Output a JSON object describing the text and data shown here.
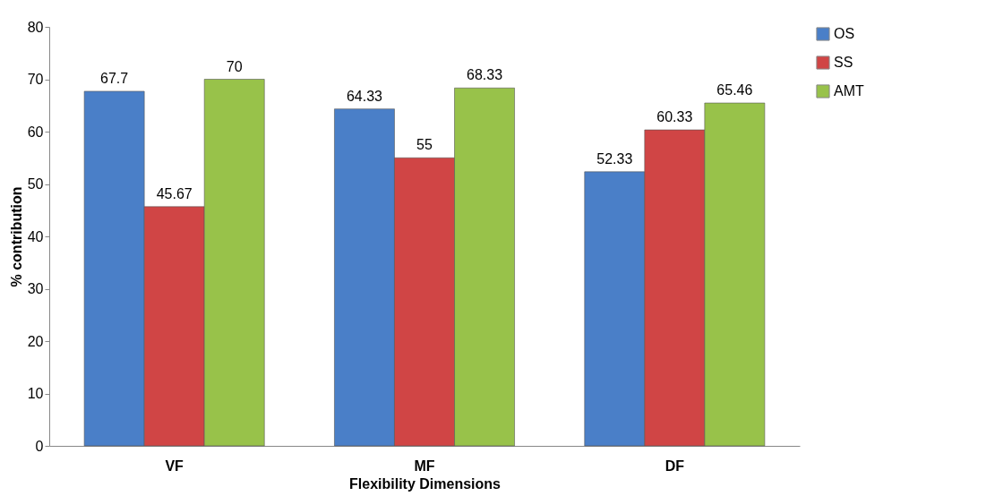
{
  "chart_data": {
    "type": "bar",
    "xlabel": "Flexibility Dimensions",
    "ylabel": "% contribution",
    "categories": [
      "VF",
      "MF",
      "DF"
    ],
    "series": [
      {
        "name": "OS",
        "color": "#4a7fc8",
        "values": [
          67.7,
          64.33,
          52.33
        ]
      },
      {
        "name": "SS",
        "color": "#d04545",
        "values": [
          45.67,
          55,
          60.33
        ]
      },
      {
        "name": "AMT",
        "color": "#98c24a",
        "values": [
          70,
          68.33,
          65.46
        ]
      }
    ],
    "ylim": [
      0,
      80
    ],
    "yticks": [
      0,
      10,
      20,
      30,
      40,
      50,
      60,
      70,
      80
    ],
    "grid": false,
    "legend": "right",
    "data_labels": true
  }
}
